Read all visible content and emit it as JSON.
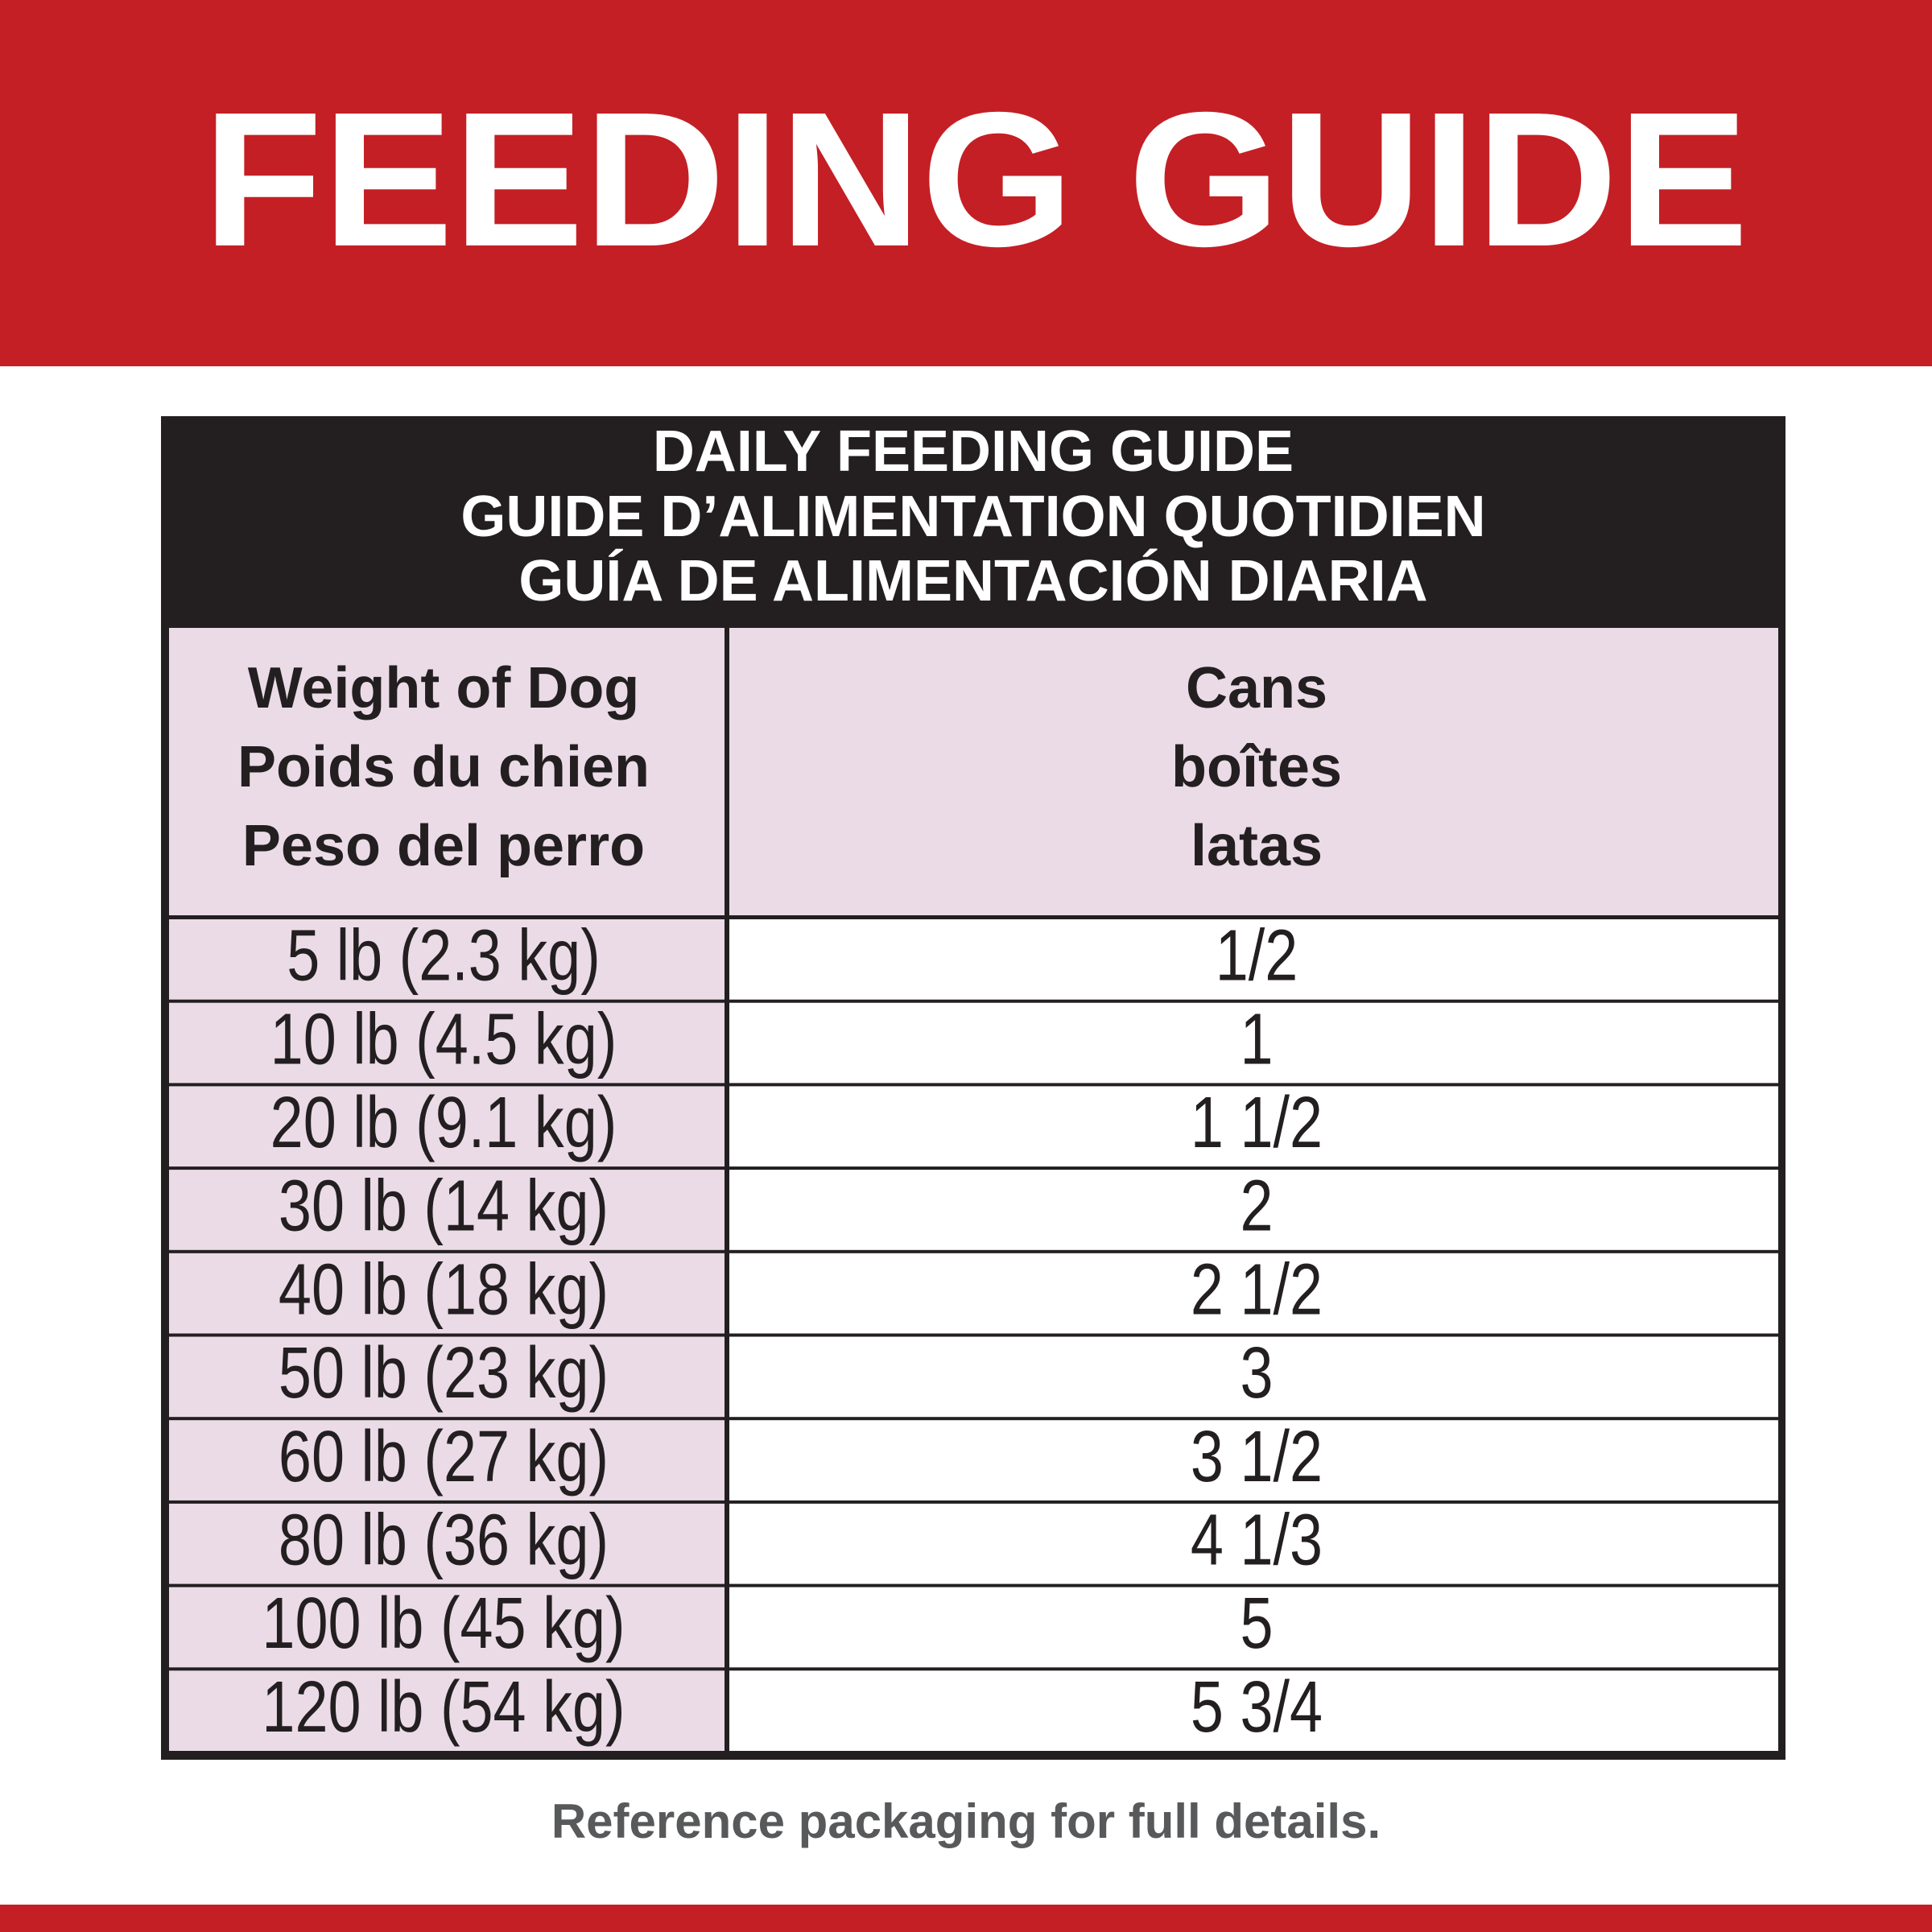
{
  "header": {
    "title": "FEEDING GUIDE"
  },
  "table": {
    "title": [
      "DAILY FEEDING GUIDE",
      "GUIDE D’ALIMENTATION QUOTIDIEN",
      "GUÍA DE ALIMENTACIÓN DIARIA"
    ],
    "columns": [
      [
        "Weight of Dog",
        "Poids du chien",
        "Peso del perro"
      ],
      [
        "Cans",
        "boîtes",
        "latas"
      ]
    ],
    "rows": [
      [
        "5 lb (2.3 kg)",
        "1/2"
      ],
      [
        "10 lb (4.5 kg)",
        "1"
      ],
      [
        "20 lb (9.1 kg)",
        "1 1/2"
      ],
      [
        "30 lb (14 kg)",
        "2"
      ],
      [
        "40 lb (18 kg)",
        "2 1/2"
      ],
      [
        "50 lb (23 kg)",
        "3"
      ],
      [
        "60 lb (27 kg)",
        "3 1/2"
      ],
      [
        "80 lb (36 kg)",
        "4 1/3"
      ],
      [
        "100 lb (45 kg)",
        "5"
      ],
      [
        "120 lb (54 kg)",
        "5 3/4"
      ]
    ]
  },
  "footer": {
    "note": "Reference packaging for full details."
  }
}
